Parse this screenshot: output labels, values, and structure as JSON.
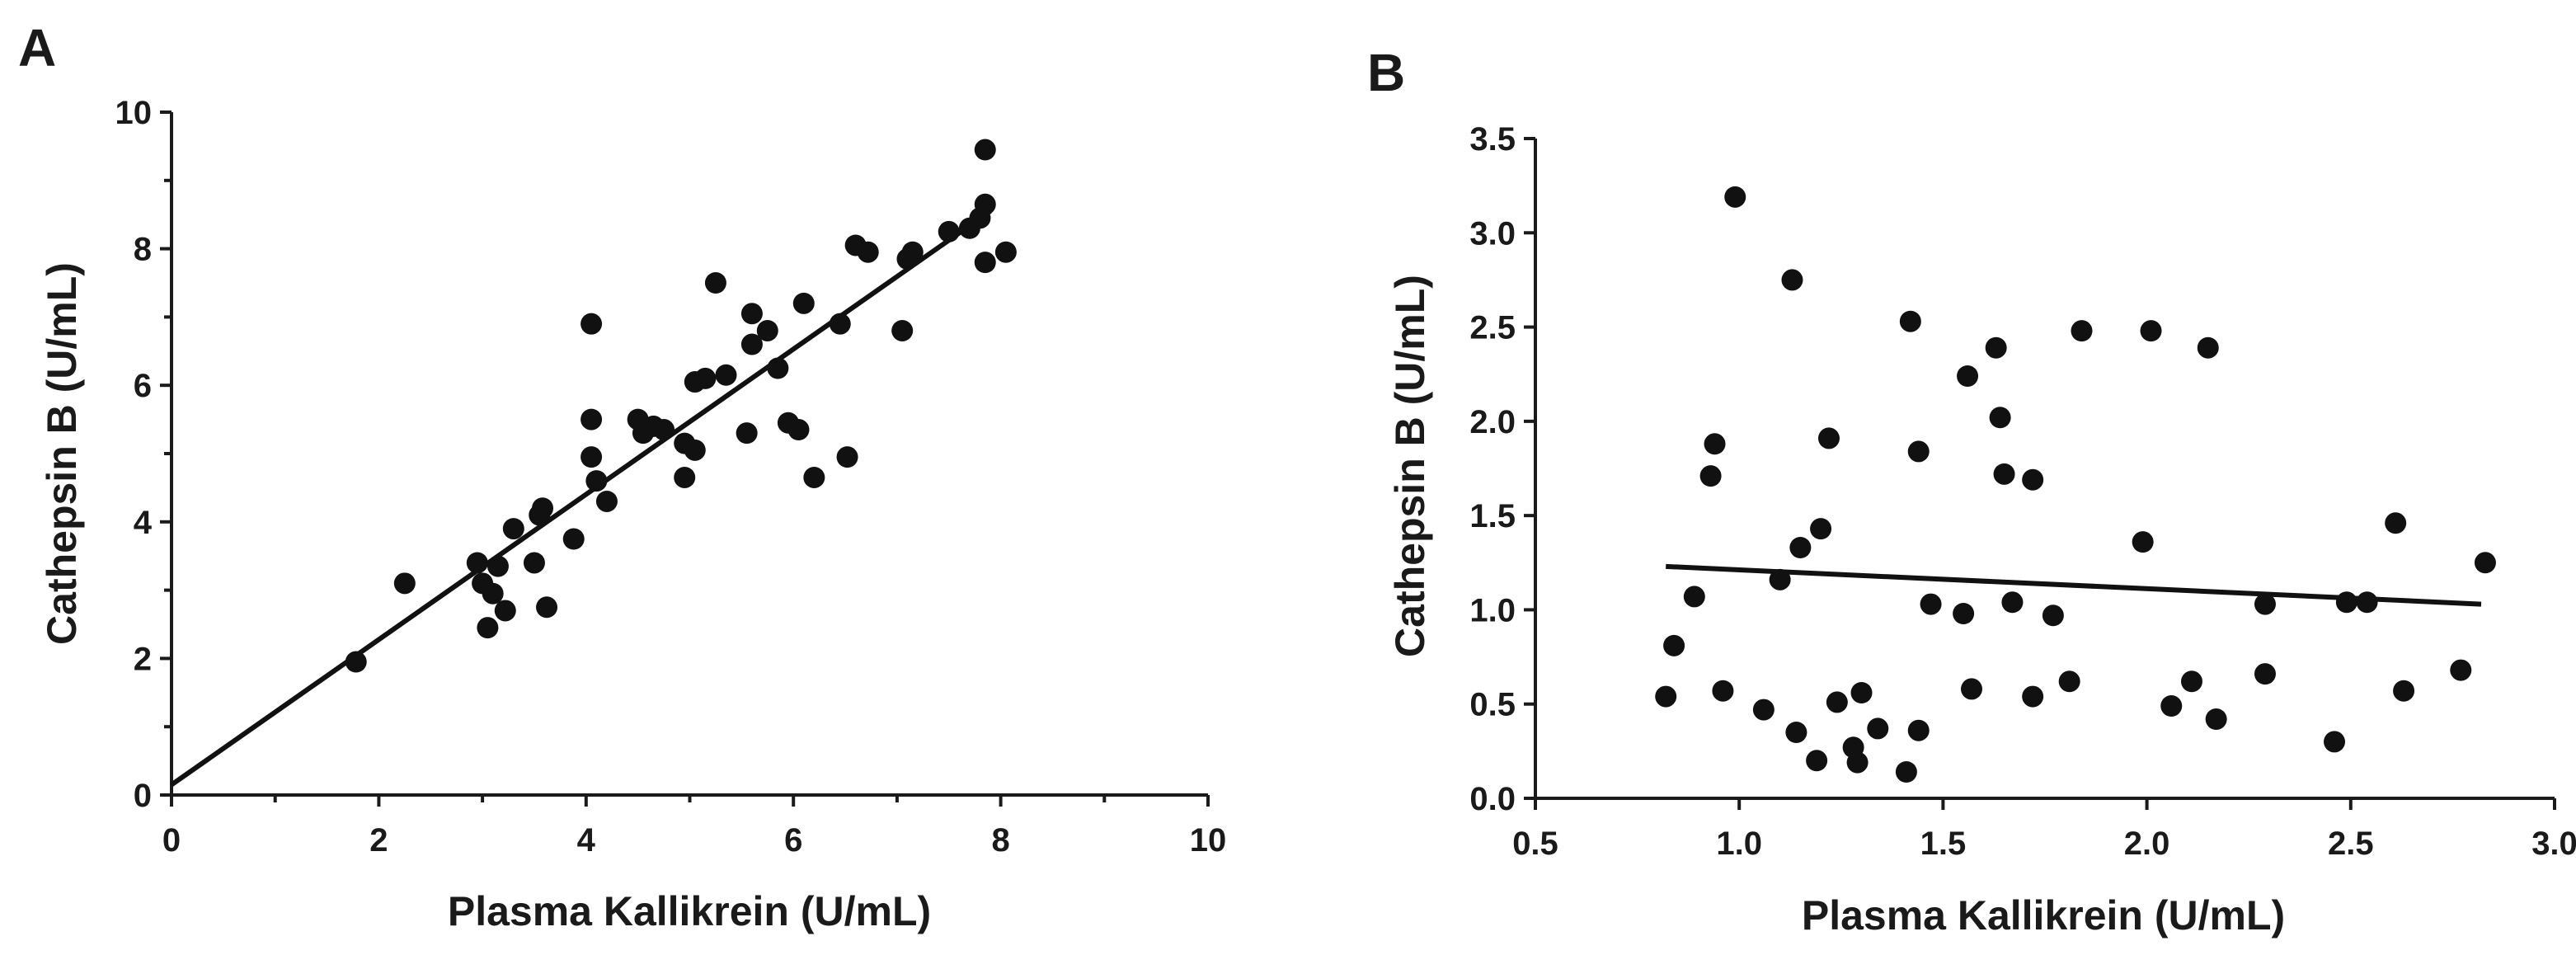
{
  "chart_data": [
    {
      "panel": "A",
      "type": "scatter",
      "xlabel": "Plasma Kallikrein (U/mL)",
      "ylabel": "Cathepsin B (U/mL)",
      "xlim": [
        0,
        10
      ],
      "ylim": [
        0,
        10
      ],
      "xticks": [
        0,
        2,
        4,
        6,
        8,
        10
      ],
      "yticks": [
        0,
        2,
        4,
        6,
        8,
        10
      ],
      "xtick_labels": [
        "0",
        "2",
        "4",
        "6",
        "8",
        "10"
      ],
      "ytick_labels": [
        "0",
        "2",
        "4",
        "6",
        "8",
        "10"
      ],
      "fit_line": {
        "x": [
          0,
          7.9
        ],
        "y": [
          0.15,
          8.55
        ]
      },
      "points": [
        {
          "x": 1.78,
          "y": 1.95
        },
        {
          "x": 2.25,
          "y": 3.1
        },
        {
          "x": 2.95,
          "y": 3.4
        },
        {
          "x": 3.0,
          "y": 3.1
        },
        {
          "x": 3.05,
          "y": 2.45
        },
        {
          "x": 3.1,
          "y": 2.95
        },
        {
          "x": 3.15,
          "y": 3.35
        },
        {
          "x": 3.22,
          "y": 2.7
        },
        {
          "x": 3.3,
          "y": 3.9
        },
        {
          "x": 3.5,
          "y": 3.4
        },
        {
          "x": 3.55,
          "y": 4.1
        },
        {
          "x": 3.58,
          "y": 4.2
        },
        {
          "x": 3.62,
          "y": 2.75
        },
        {
          "x": 3.88,
          "y": 3.75
        },
        {
          "x": 4.05,
          "y": 6.9
        },
        {
          "x": 4.05,
          "y": 5.5
        },
        {
          "x": 4.05,
          "y": 4.95
        },
        {
          "x": 4.1,
          "y": 4.6
        },
        {
          "x": 4.2,
          "y": 4.3
        },
        {
          "x": 4.5,
          "y": 5.5
        },
        {
          "x": 4.55,
          "y": 5.3
        },
        {
          "x": 4.65,
          "y": 5.4
        },
        {
          "x": 4.75,
          "y": 5.35
        },
        {
          "x": 4.95,
          "y": 4.65
        },
        {
          "x": 4.95,
          "y": 5.15
        },
        {
          "x": 5.05,
          "y": 5.05
        },
        {
          "x": 5.05,
          "y": 6.05
        },
        {
          "x": 5.15,
          "y": 6.1
        },
        {
          "x": 5.25,
          "y": 7.5
        },
        {
          "x": 5.35,
          "y": 6.15
        },
        {
          "x": 5.55,
          "y": 5.3
        },
        {
          "x": 5.6,
          "y": 7.05
        },
        {
          "x": 5.6,
          "y": 6.6
        },
        {
          "x": 5.75,
          "y": 6.8
        },
        {
          "x": 5.85,
          "y": 6.25
        },
        {
          "x": 5.95,
          "y": 5.45
        },
        {
          "x": 6.05,
          "y": 5.35
        },
        {
          "x": 6.1,
          "y": 7.2
        },
        {
          "x": 6.2,
          "y": 4.65
        },
        {
          "x": 6.45,
          "y": 6.9
        },
        {
          "x": 6.52,
          "y": 4.95
        },
        {
          "x": 6.6,
          "y": 8.05
        },
        {
          "x": 6.72,
          "y": 7.95
        },
        {
          "x": 7.05,
          "y": 6.8
        },
        {
          "x": 7.1,
          "y": 7.85
        },
        {
          "x": 7.15,
          "y": 7.95
        },
        {
          "x": 7.5,
          "y": 8.25
        },
        {
          "x": 7.7,
          "y": 8.3
        },
        {
          "x": 7.8,
          "y": 8.45
        },
        {
          "x": 7.85,
          "y": 9.45
        },
        {
          "x": 7.85,
          "y": 8.65
        },
        {
          "x": 7.85,
          "y": 7.8
        },
        {
          "x": 8.05,
          "y": 7.95
        }
      ]
    },
    {
      "panel": "B",
      "type": "scatter",
      "xlabel": "Plasma Kallikrein (U/mL)",
      "ylabel": "Cathepsin B (U/mL)",
      "xlim": [
        0.5,
        3.0
      ],
      "ylim": [
        0.0,
        3.5
      ],
      "xticks": [
        0.5,
        1.0,
        1.5,
        2.0,
        2.5,
        3.0
      ],
      "yticks": [
        0.0,
        0.5,
        1.0,
        1.5,
        2.0,
        2.5,
        3.0,
        3.5
      ],
      "xtick_labels": [
        "0.5",
        "1.0",
        "1.5",
        "2.0",
        "2.5",
        "3.0"
      ],
      "ytick_labels": [
        "0.0",
        "0.5",
        "1.0",
        "1.5",
        "2.0",
        "2.5",
        "3.0",
        "3.5"
      ],
      "fit_line": {
        "x": [
          0.82,
          2.82
        ],
        "y": [
          1.23,
          1.03
        ]
      },
      "points": [
        {
          "x": 0.82,
          "y": 0.54
        },
        {
          "x": 0.84,
          "y": 0.81
        },
        {
          "x": 0.89,
          "y": 1.07
        },
        {
          "x": 0.93,
          "y": 1.71
        },
        {
          "x": 0.94,
          "y": 1.88
        },
        {
          "x": 0.96,
          "y": 0.57
        },
        {
          "x": 0.99,
          "y": 3.19
        },
        {
          "x": 1.06,
          "y": 0.47
        },
        {
          "x": 1.1,
          "y": 1.16
        },
        {
          "x": 1.13,
          "y": 2.75
        },
        {
          "x": 1.14,
          "y": 0.35
        },
        {
          "x": 1.15,
          "y": 1.33
        },
        {
          "x": 1.19,
          "y": 0.2
        },
        {
          "x": 1.2,
          "y": 1.43
        },
        {
          "x": 1.22,
          "y": 1.91
        },
        {
          "x": 1.24,
          "y": 0.51
        },
        {
          "x": 1.28,
          "y": 0.27
        },
        {
          "x": 1.29,
          "y": 0.19
        },
        {
          "x": 1.3,
          "y": 0.56
        },
        {
          "x": 1.34,
          "y": 0.37
        },
        {
          "x": 1.41,
          "y": 0.14
        },
        {
          "x": 1.42,
          "y": 2.53
        },
        {
          "x": 1.44,
          "y": 1.84
        },
        {
          "x": 1.44,
          "y": 0.36
        },
        {
          "x": 1.47,
          "y": 1.03
        },
        {
          "x": 1.55,
          "y": 0.98
        },
        {
          "x": 1.56,
          "y": 2.24
        },
        {
          "x": 1.57,
          "y": 0.58
        },
        {
          "x": 1.63,
          "y": 2.39
        },
        {
          "x": 1.64,
          "y": 2.02
        },
        {
          "x": 1.65,
          "y": 1.72
        },
        {
          "x": 1.67,
          "y": 1.04
        },
        {
          "x": 1.72,
          "y": 1.69
        },
        {
          "x": 1.72,
          "y": 0.54
        },
        {
          "x": 1.77,
          "y": 0.97
        },
        {
          "x": 1.81,
          "y": 0.62
        },
        {
          "x": 1.84,
          "y": 2.48
        },
        {
          "x": 1.99,
          "y": 1.36
        },
        {
          "x": 2.01,
          "y": 2.48
        },
        {
          "x": 2.06,
          "y": 0.49
        },
        {
          "x": 2.11,
          "y": 0.62
        },
        {
          "x": 2.15,
          "y": 2.39
        },
        {
          "x": 2.17,
          "y": 0.42
        },
        {
          "x": 2.29,
          "y": 1.03
        },
        {
          "x": 2.29,
          "y": 0.66
        },
        {
          "x": 2.46,
          "y": 0.3
        },
        {
          "x": 2.49,
          "y": 1.04
        },
        {
          "x": 2.54,
          "y": 1.04
        },
        {
          "x": 2.61,
          "y": 1.46
        },
        {
          "x": 2.63,
          "y": 0.57
        },
        {
          "x": 2.77,
          "y": 0.68
        },
        {
          "x": 2.83,
          "y": 1.25
        }
      ]
    }
  ]
}
